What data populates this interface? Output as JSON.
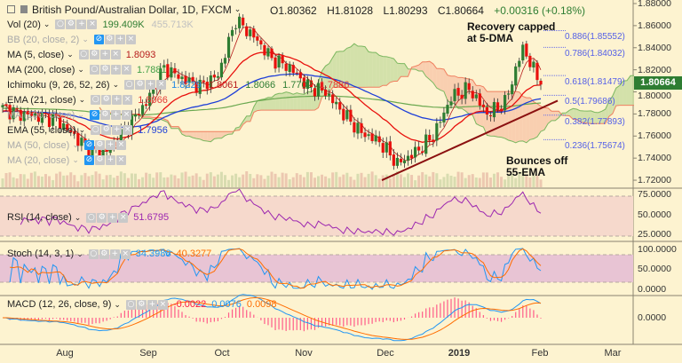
{
  "header": {
    "symbol": "British Pound/Australian Dollar, 1D, FXCM",
    "open": "O1.80362",
    "high": "H1.81028",
    "low": "L1.80293",
    "close": "C1.80664",
    "change": "+0.00316 (+0.18%)"
  },
  "legend": [
    {
      "label": "Vol (20)",
      "values": [
        "199.409K",
        "455.713K"
      ],
      "colors": [
        "#2e7d32",
        "#c0c0c0"
      ],
      "hidden": false
    },
    {
      "label": "BB (20, close, 2)",
      "values": [],
      "colors": [],
      "hidden": true
    },
    {
      "label": "MA (5, close)",
      "values": [
        "1.8093"
      ],
      "colors": [
        "#b71c1c"
      ],
      "hidden": false
    },
    {
      "label": "MA (200, close)",
      "values": [
        "1.7881"
      ],
      "colors": [
        "#43a047"
      ],
      "hidden": false
    },
    {
      "label": "Ichimoku (9, 26, 52, 26)",
      "values": [
        "1.8229",
        "1.8061",
        "1.8066",
        "1.7702",
        "1.7886"
      ],
      "colors": [
        "#1e88e5",
        "#b71c1c",
        "#2e7d32",
        "#2e7d32",
        "#e53935"
      ],
      "hidden": false
    },
    {
      "label": "EMA (21, close)",
      "values": [
        "1.8066"
      ],
      "colors": [
        "#e53935"
      ],
      "hidden": false
    },
    {
      "label": "MA (100, close)",
      "values": [],
      "colors": [],
      "hidden": true
    },
    {
      "label": "EMA (55, close)",
      "values": [
        "1.7956"
      ],
      "colors": [
        "#1e3fd8"
      ],
      "hidden": false
    },
    {
      "label": "MA (50, close)",
      "values": [],
      "colors": [],
      "hidden": true
    },
    {
      "label": "MA (20, close)",
      "values": [],
      "colors": [],
      "hidden": true
    }
  ],
  "annotations": {
    "top": "Recovery capped\nat 5-DMA",
    "bottom": "Bounces off\n55-EMA"
  },
  "fib_levels": [
    {
      "label": "0.886(1.85552)",
      "value": 1.85552
    },
    {
      "label": "0.786(1.84032)",
      "value": 1.84032
    },
    {
      "label": "0.618(1.81479)",
      "value": 1.81479
    },
    {
      "label": "0.5(1.79686)",
      "value": 1.79686
    },
    {
      "label": "0.382(1.77893)",
      "value": 1.77893
    },
    {
      "label": "0.236(1.75674)",
      "value": 1.75674
    }
  ],
  "price_axis": [
    "1.88000",
    "1.86000",
    "1.84000",
    "1.82000",
    "1.80000",
    "1.78000",
    "1.76000",
    "1.74000",
    "1.72000"
  ],
  "current_price": "1.80664",
  "rsi": {
    "label": "RSI (14, close)",
    "value": "51.6795",
    "axis": [
      "75.0000",
      "50.0000",
      "25.0000"
    ]
  },
  "stoch": {
    "label": "Stoch (14, 3, 1)",
    "k": "34.3988",
    "d": "40.3277",
    "axis": [
      "100.0000",
      "50.0000",
      "0.0000"
    ]
  },
  "macd": {
    "label": "MACD (12, 26, close, 9)",
    "hist": "-0.0022",
    "macd": "0.0076",
    "signal": "0.0098",
    "axis": [
      "0.0000"
    ]
  },
  "time_axis": [
    "Aug",
    "Sep",
    "Oct",
    "Nov",
    "Dec",
    "2019",
    "Feb",
    "Mar"
  ],
  "colors": {
    "up": "#2e7d32",
    "down": "#e8100c",
    "bg": "#fdf3d0"
  },
  "chart_data": {
    "type": "candlestick",
    "title": "British Pound/Australian Dollar, 1D, FXCM",
    "x_range": [
      "2018-07",
      "2019-02-01"
    ],
    "weekly_closes": [
      1.785,
      1.78,
      1.778,
      1.775,
      1.76,
      1.745,
      1.748,
      1.77,
      1.79,
      1.822,
      1.812,
      1.805,
      1.815,
      1.865,
      1.85,
      1.83,
      1.822,
      1.805,
      1.8,
      1.78,
      1.763,
      1.755,
      1.735,
      1.745,
      1.76,
      1.795,
      1.803,
      1.78,
      1.79,
      1.84,
      1.8066
    ],
    "ylim": [
      1.715,
      1.885
    ],
    "trendline": [
      [
        1.72,
        1.792
      ]
    ]
  }
}
